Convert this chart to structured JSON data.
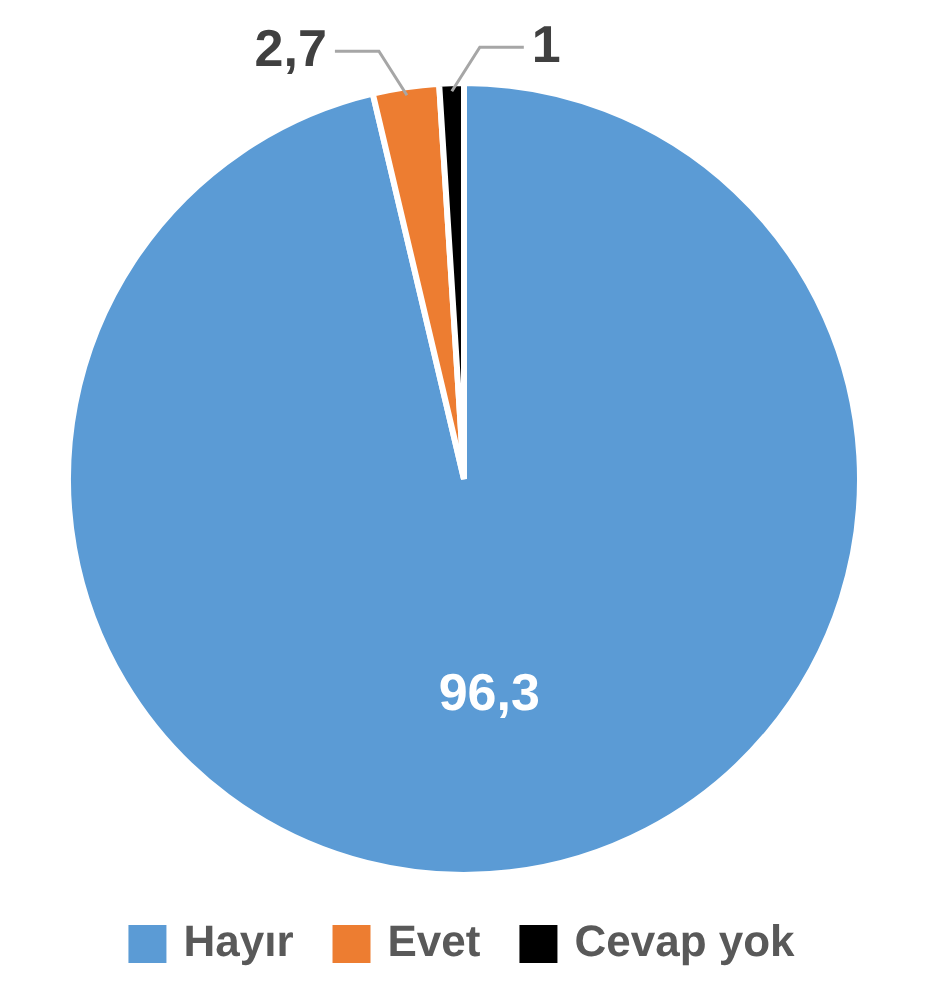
{
  "chart_data": {
    "type": "pie",
    "categories": [
      "Hayır",
      "Evet",
      "Cevap yok"
    ],
    "values": [
      96.3,
      2.7,
      1
    ],
    "colors": [
      "#5b9bd5",
      "#ed7d31",
      "#000000"
    ],
    "value_labels": [
      "96,3",
      "2,7",
      "1"
    ],
    "legend": "bottom"
  }
}
